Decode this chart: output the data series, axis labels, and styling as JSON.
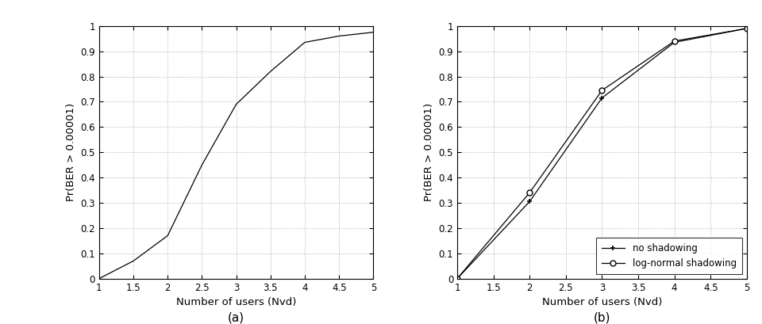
{
  "plot_a": {
    "x": [
      1,
      1.5,
      2,
      2.5,
      3,
      3.5,
      4,
      4.5,
      5
    ],
    "y": [
      0.0,
      0.07,
      0.17,
      0.45,
      0.69,
      0.82,
      0.935,
      0.96,
      0.975
    ],
    "label": "(a)",
    "xlabel": "Number of users (Nvd)",
    "ylabel": "Pr(BER ≥ 0.00001)"
  },
  "plot_b": {
    "no_shadowing": {
      "x": [
        1,
        2,
        3,
        4,
        5
      ],
      "y": [
        0.0,
        0.305,
        0.715,
        0.935,
        0.99
      ],
      "marker": "+",
      "label": "no shadowing"
    },
    "log_normal": {
      "x": [
        1,
        2,
        3,
        4,
        5
      ],
      "y": [
        0.0,
        0.34,
        0.745,
        0.94,
        0.99
      ],
      "marker": "o",
      "label": "log-normal shadowing"
    },
    "label": "(b)",
    "xlabel": "Number of users (Nvd)",
    "ylabel": "Pr(BER ≥ 0.00001)"
  },
  "xlim": [
    1,
    5
  ],
  "ylim": [
    0,
    1
  ],
  "xticks": [
    1,
    1.5,
    2,
    2.5,
    3,
    3.5,
    4,
    4.5,
    5
  ],
  "yticks": [
    0,
    0.1,
    0.2,
    0.3,
    0.4,
    0.5,
    0.6,
    0.7,
    0.8,
    0.9,
    1.0
  ],
  "line_color": "#000000",
  "bg_color": "#ffffff",
  "grid_color": "#999999",
  "tick_fontsize": 8.5,
  "label_fontsize": 9.5,
  "subtitle_fontsize": 11,
  "legend_fontsize": 8.5
}
